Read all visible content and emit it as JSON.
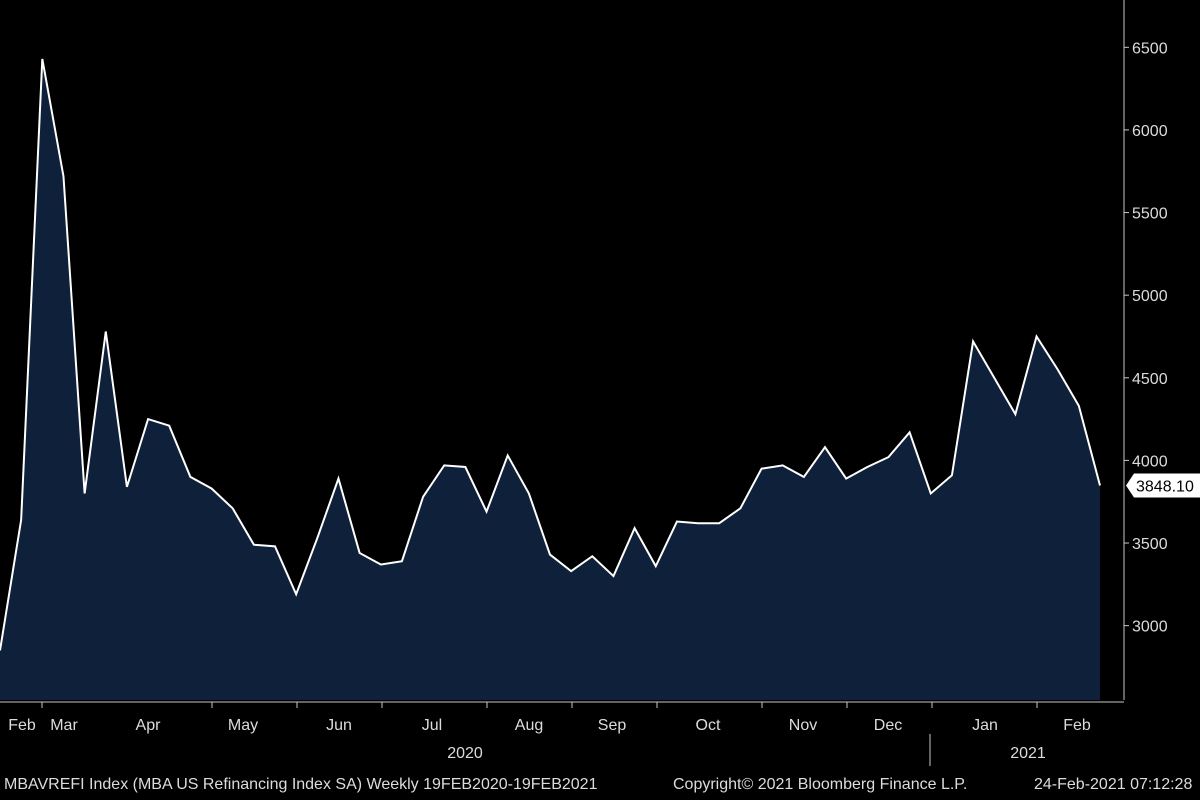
{
  "chart_data": {
    "type": "area",
    "series": [
      {
        "name": "MBA US Refinancing Index SA",
        "values": [
          2850,
          3640,
          6430,
          5720,
          3800,
          4780,
          3840,
          4250,
          4210,
          3900,
          3830,
          3710,
          3490,
          3480,
          3190,
          3530,
          3890,
          3440,
          3370,
          3390,
          3780,
          3970,
          3960,
          3690,
          4030,
          3800,
          3430,
          3330,
          3420,
          3300,
          3590,
          3360,
          3630,
          3620,
          3620,
          3710,
          3950,
          3970,
          3900,
          4080,
          3890,
          3960,
          4020,
          4170,
          3800,
          3910,
          4720,
          4500,
          4280,
          4750,
          4550,
          4330,
          3848.1
        ]
      }
    ],
    "x_start_date": "2020-02-19",
    "x_interval_days": 7,
    "ylim": [
      2550,
      6750
    ],
    "y_ticks": [
      3000,
      3500,
      4000,
      4500,
      5000,
      5500,
      6000,
      6500
    ],
    "x_month_labels": [
      {
        "label": "Feb",
        "date": "2020-02-19"
      },
      {
        "label": "Mar",
        "date": "2020-03-04"
      },
      {
        "label": "Apr",
        "date": "2020-04-08"
      },
      {
        "label": "May",
        "date": "2020-05-13"
      },
      {
        "label": "Jun",
        "date": "2020-06-17"
      },
      {
        "label": "Jul",
        "date": "2020-07-22"
      },
      {
        "label": "Aug",
        "date": "2020-08-26"
      },
      {
        "label": "Sep",
        "date": "2020-09-30"
      },
      {
        "label": "Oct",
        "date": "2020-11-04"
      },
      {
        "label": "Nov",
        "date": "2020-12-09"
      },
      {
        "label": "Dec",
        "date": "2021-01-10"
      },
      {
        "label": "Jan",
        "date": "2021-02-15"
      },
      {
        "label": "Feb",
        "date": "2021-03-20"
      }
    ],
    "x_year_labels": [
      "2020",
      "2021"
    ],
    "last_value_label": "3848.10",
    "colors": {
      "background": "#000000",
      "fill": "#0f213a",
      "line": "#ffffff",
      "axis": "#c8c8c8",
      "text": "#dcdcdc"
    }
  },
  "footer": {
    "left": "MBAVREFI Index (MBA US Refinancing Index SA)  Weekly 19FEB2020-19FEB2021",
    "center": "Copyright© 2021 Bloomberg Finance L.P.",
    "right": "24-Feb-2021 07:12:28"
  }
}
